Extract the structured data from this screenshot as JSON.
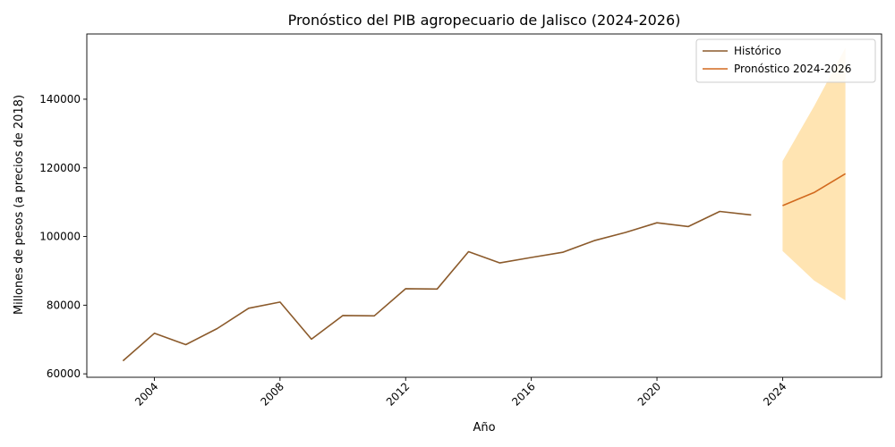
{
  "chart_data": {
    "type": "line",
    "title": "Pronóstico del PIB agropecuario de Jalisco (2024-2026)",
    "xlabel": "Año",
    "ylabel": "Millones de pesos (a precios de 2018)",
    "xlim": [
      2001.85,
      2027.15
    ],
    "ylim": [
      59000,
      159000
    ],
    "x_ticks": [
      "2004",
      "2008",
      "2012",
      "2016",
      "2020",
      "2024"
    ],
    "y_ticks": [
      "60000",
      "80000",
      "100000",
      "120000",
      "140000"
    ],
    "grid": false,
    "legend_position": "top-right",
    "series": [
      {
        "name": "Histórico",
        "color": "#8B5A2B",
        "x": [
          2003,
          2004,
          2005,
          2006,
          2007,
          2008,
          2009,
          2010,
          2011,
          2012,
          2013,
          2014,
          2015,
          2016,
          2017,
          2018,
          2019,
          2020,
          2021,
          2022,
          2023
        ],
        "y": [
          63800,
          71800,
          68500,
          73200,
          79100,
          80900,
          70100,
          77000,
          76900,
          84800,
          84700,
          95600,
          92300,
          93900,
          95400,
          98800,
          101200,
          104000,
          102900,
          107300,
          106300
        ]
      },
      {
        "name": "Pronóstico 2024-2026",
        "color": "#D2691E",
        "x": [
          2024,
          2025,
          2026
        ],
        "y": [
          109000,
          112800,
          118300
        ]
      }
    ],
    "confidence_band": {
      "color": "#FFA500",
      "x": [
        2024,
        2025,
        2026
      ],
      "lower": [
        95800,
        87200,
        81400
      ],
      "upper": [
        122000,
        137900,
        155000
      ]
    }
  }
}
